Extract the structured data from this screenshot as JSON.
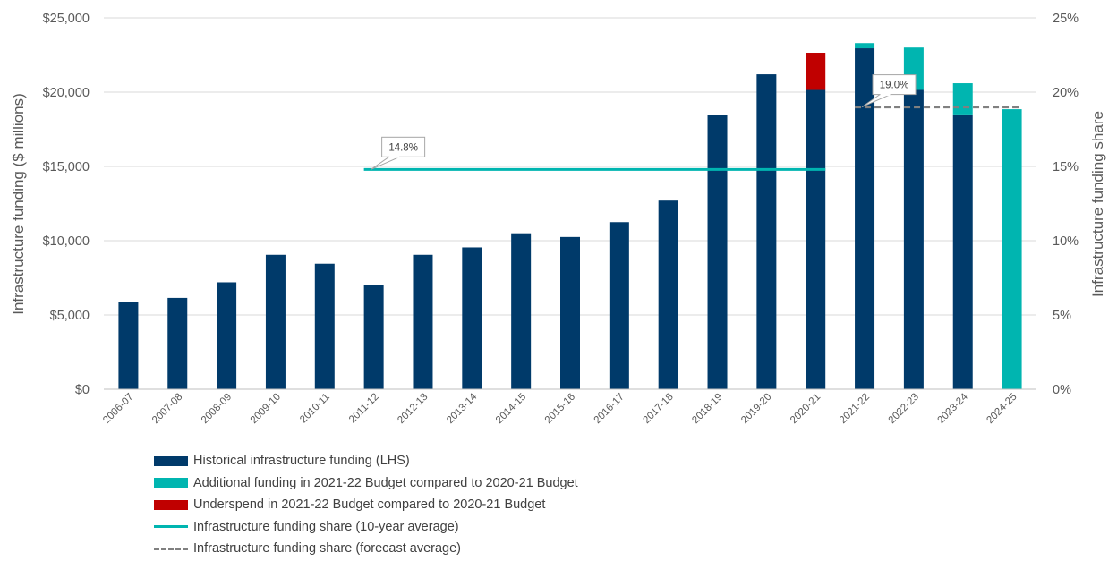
{
  "chart_data": {
    "type": "bar",
    "stacked": true,
    "categories": [
      "2006-07",
      "2007-08",
      "2008-09",
      "2009-10",
      "2010-11",
      "2011-12",
      "2012-13",
      "2013-14",
      "2014-15",
      "2015-16",
      "2016-17",
      "2017-18",
      "2018-19",
      "2019-20",
      "2020-21",
      "2021-22",
      "2022-23",
      "2023-24",
      "2024-25"
    ],
    "series": [
      {
        "name": "Historical infrastructure funding (LHS)",
        "color": "#003A6A",
        "values": [
          5900,
          6150,
          7200,
          9050,
          8450,
          7000,
          9050,
          9550,
          10500,
          10250,
          11250,
          12700,
          18450,
          21200,
          20150,
          22950,
          20150,
          18500,
          0
        ]
      },
      {
        "name": "Additional funding in 2021-22 Budget compared to 2020-21 Budget",
        "color": "#00B5B0",
        "values": [
          0,
          0,
          0,
          0,
          0,
          0,
          0,
          0,
          0,
          0,
          0,
          0,
          0,
          0,
          0,
          350,
          2850,
          2100,
          18850
        ]
      },
      {
        "name": "Underspend in 2021-22 Budget compared to 2020-21 Budget",
        "color": "#C00000",
        "values": [
          0,
          0,
          0,
          0,
          0,
          0,
          0,
          0,
          0,
          0,
          0,
          0,
          0,
          0,
          2500,
          0,
          0,
          0,
          0
        ]
      }
    ],
    "lines": [
      {
        "name": "Infrastructure funding share (10-year average)",
        "color": "#00B5B0",
        "style": "solid",
        "value": 14.8,
        "from": "2011-12",
        "to": "2020-21",
        "label": "14.8%"
      },
      {
        "name": "Infrastructure funding share (forecast average)",
        "color": "#808080",
        "style": "dashed",
        "value": 19.0,
        "from": "2021-22",
        "to": "2024-25",
        "label": "19.0%"
      }
    ],
    "ylabel": "Infrastructure funding ($ millions)",
    "y2label": "Infrastructure funding  share",
    "ylim": [
      0,
      25000
    ],
    "y2lim": [
      0,
      25
    ],
    "yticks": [
      "$0",
      "$5,000",
      "$10,000",
      "$15,000",
      "$20,000",
      "$25,000"
    ],
    "y2ticks": [
      "0%",
      "5%",
      "10%",
      "15%",
      "20%",
      "25%"
    ],
    "grid": true,
    "legend_position": "bottom"
  },
  "legend": [
    {
      "label": "Historical infrastructure funding (LHS)",
      "kind": "box",
      "color": "#003A6A"
    },
    {
      "label": "Additional funding in 2021-22 Budget compared to 2020-21 Budget",
      "kind": "box",
      "color": "#00B5B0"
    },
    {
      "label": "Underspend in 2021-22 Budget compared to 2020-21 Budget",
      "kind": "box",
      "color": "#C00000"
    },
    {
      "label": "Infrastructure funding share (10-year average)",
      "kind": "line",
      "color": "#00B5B0"
    },
    {
      "label": "Infrastructure funding share (forecast average)",
      "kind": "dash",
      "color": "#808080"
    }
  ]
}
